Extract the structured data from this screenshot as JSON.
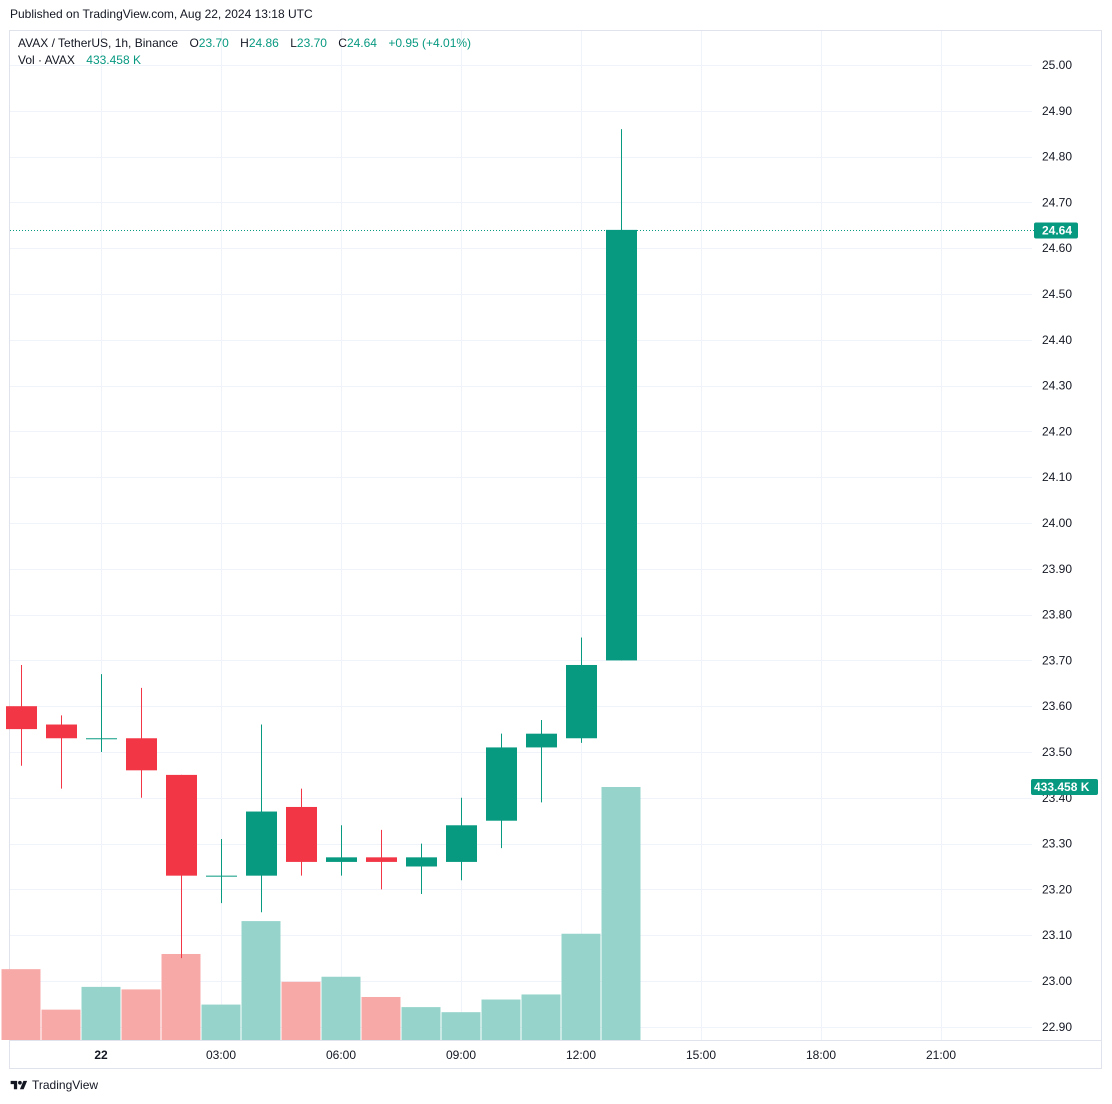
{
  "published": "Published on TradingView.com, Aug 22, 2024 13:18 UTC",
  "legend": {
    "symbol": "AVAX / TetherUS, 1h, Binance",
    "o_label": "O",
    "o_val": "23.70",
    "h_label": "H",
    "h_val": "24.86",
    "l_label": "L",
    "l_val": "23.70",
    "c_label": "C",
    "c_val": "24.64",
    "change": "+0.95 (+4.01%)",
    "vol_label": "Vol · AVAX",
    "vol_val": "433.458 K"
  },
  "footer": {
    "brand": "TradingView"
  },
  "colors": {
    "up": "#089981",
    "down": "#f23645",
    "up_vol": "#96d4cb",
    "down_vol": "#f7a9a7",
    "grid": "#f0f3fa"
  },
  "chart_data": {
    "type": "candlestick",
    "price_axis": {
      "ylim": [
        22.87,
        25.06
      ],
      "ticks": [
        "25.00",
        "24.90",
        "24.80",
        "24.70",
        "24.60",
        "24.50",
        "24.40",
        "24.30",
        "24.20",
        "24.10",
        "24.00",
        "23.90",
        "23.80",
        "23.70",
        "23.60",
        "23.50",
        "23.40",
        "23.30",
        "23.20",
        "23.10",
        "23.00",
        "22.90"
      ]
    },
    "time_axis": {
      "ticks": [
        {
          "label": "22",
          "hour": 2
        },
        {
          "label": "03:00",
          "hour": 5
        },
        {
          "label": "06:00",
          "hour": 8
        },
        {
          "label": "09:00",
          "hour": 11
        },
        {
          "label": "12:00",
          "hour": 14
        },
        {
          "label": "15:00",
          "hour": 17
        },
        {
          "label": "18:00",
          "hour": 20
        },
        {
          "label": "21:00",
          "hour": 23
        }
      ]
    },
    "candles": [
      {
        "hour": 0,
        "o": 23.6,
        "h": 23.69,
        "l": 23.47,
        "c": 23.55,
        "vol": 0.28
      },
      {
        "hour": 1,
        "o": 23.56,
        "h": 23.58,
        "l": 23.42,
        "c": 23.53,
        "vol": 0.12
      },
      {
        "hour": 2,
        "o": 23.53,
        "h": 23.67,
        "l": 23.5,
        "c": 23.53,
        "vol": 0.21
      },
      {
        "hour": 3,
        "o": 23.53,
        "h": 23.64,
        "l": 23.4,
        "c": 23.46,
        "vol": 0.2
      },
      {
        "hour": 4,
        "o": 23.45,
        "h": 23.45,
        "l": 23.05,
        "c": 23.23,
        "vol": 0.34
      },
      {
        "hour": 5,
        "o": 23.23,
        "h": 23.31,
        "l": 23.17,
        "c": 23.23,
        "vol": 0.14
      },
      {
        "hour": 6,
        "o": 23.23,
        "h": 23.56,
        "l": 23.15,
        "c": 23.37,
        "vol": 0.47
      },
      {
        "hour": 7,
        "o": 23.38,
        "h": 23.42,
        "l": 23.23,
        "c": 23.26,
        "vol": 0.23
      },
      {
        "hour": 8,
        "o": 23.26,
        "h": 23.34,
        "l": 23.23,
        "c": 23.27,
        "vol": 0.25
      },
      {
        "hour": 9,
        "o": 23.27,
        "h": 23.33,
        "l": 23.2,
        "c": 23.26,
        "vol": 0.17
      },
      {
        "hour": 10,
        "o": 23.25,
        "h": 23.3,
        "l": 23.19,
        "c": 23.27,
        "vol": 0.13
      },
      {
        "hour": 11,
        "o": 23.26,
        "h": 23.4,
        "l": 23.22,
        "c": 23.34,
        "vol": 0.11
      },
      {
        "hour": 12,
        "o": 23.35,
        "h": 23.54,
        "l": 23.29,
        "c": 23.51,
        "vol": 0.16
      },
      {
        "hour": 13,
        "o": 23.51,
        "h": 23.57,
        "l": 23.39,
        "c": 23.54,
        "vol": 0.18
      },
      {
        "hour": 14,
        "o": 23.53,
        "h": 23.75,
        "l": 23.52,
        "c": 23.69,
        "vol": 0.42
      },
      {
        "hour": 15,
        "o": 23.7,
        "h": 24.86,
        "l": 23.7,
        "c": 24.64,
        "vol": 433.458
      }
    ],
    "last_price": {
      "value": 24.64,
      "label": "24.64"
    },
    "last_volume_label": "433.458 K"
  }
}
